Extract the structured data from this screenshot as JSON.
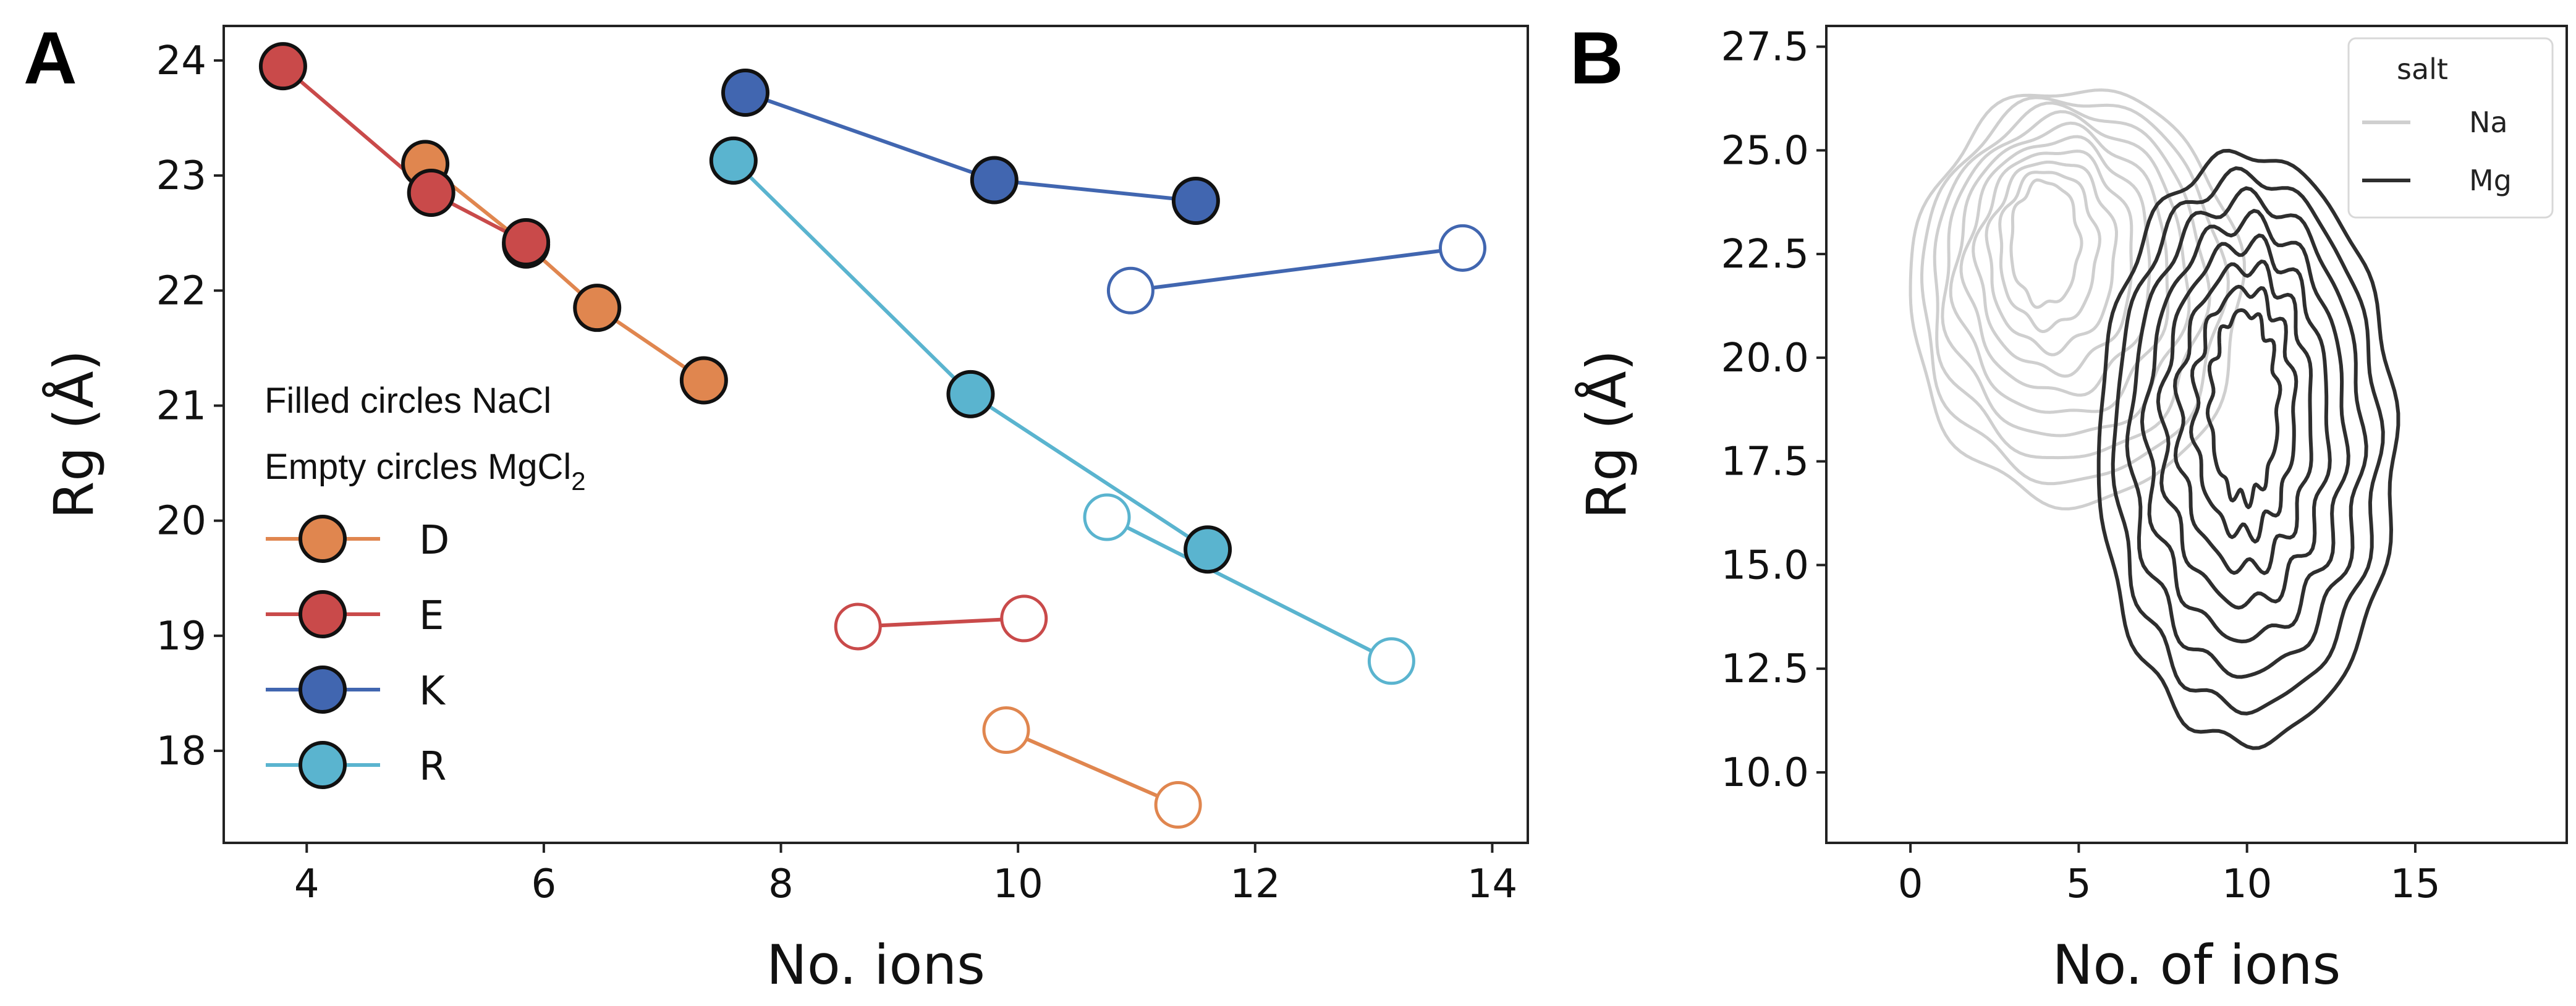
{
  "chart_data": [
    {
      "panel": "A",
      "type": "line",
      "xlabel": "No. ions",
      "ylabel": "Rg (Å)",
      "xlim": [
        3.3,
        14.3
      ],
      "ylim": [
        17.2,
        24.3
      ],
      "xticks": [
        "4",
        "6",
        "8",
        "10",
        "12",
        "14"
      ],
      "xtick_values": [
        4,
        6,
        8,
        10,
        12,
        14
      ],
      "yticks": [
        "18",
        "19",
        "20",
        "21",
        "22",
        "23",
        "24"
      ],
      "ytick_values": [
        18,
        19,
        20,
        21,
        22,
        23,
        24
      ],
      "annotation_line1": "Filled circles NaCl",
      "annotation_line2_prefix": "Empty circles MgCl",
      "annotation_line2_sub": "2",
      "series": [
        {
          "name": "D",
          "color": "#e0864f",
          "edge": "#e0864f",
          "filled": true,
          "points": [
            [
              5.0,
              23.1
            ],
            [
              5.85,
              22.4
            ],
            [
              6.45,
              21.85
            ],
            [
              7.35,
              21.22
            ]
          ]
        },
        {
          "name": "D",
          "color": "#e0864f",
          "edge": "#e0864f",
          "filled": false,
          "points": [
            [
              9.9,
              18.18
            ],
            [
              11.35,
              17.53
            ]
          ]
        },
        {
          "name": "E",
          "color": "#c94a4a",
          "edge": "#c94a4a",
          "filled": true,
          "points": [
            [
              3.8,
              23.95
            ],
            [
              5.05,
              22.85
            ],
            [
              5.85,
              22.42
            ]
          ]
        },
        {
          "name": "E",
          "color": "#c94a4a",
          "edge": "#c94a4a",
          "filled": false,
          "points": [
            [
              8.65,
              19.08
            ],
            [
              10.05,
              19.15
            ]
          ]
        },
        {
          "name": "K",
          "color": "#4166b0",
          "edge": "#4166b0",
          "filled": true,
          "points": [
            [
              7.7,
              23.72
            ],
            [
              9.8,
              22.96
            ],
            [
              11.5,
              22.78
            ]
          ]
        },
        {
          "name": "K",
          "color": "#4166b0",
          "edge": "#4166b0",
          "filled": false,
          "points": [
            [
              10.95,
              22.0
            ],
            [
              13.75,
              22.37
            ]
          ]
        },
        {
          "name": "R",
          "color": "#5ab4cf",
          "edge": "#5ab4cf",
          "filled": true,
          "points": [
            [
              7.6,
              23.13
            ],
            [
              9.6,
              21.1
            ],
            [
              11.6,
              19.75
            ]
          ]
        },
        {
          "name": "R",
          "color": "#5ab4cf",
          "edge": "#5ab4cf",
          "filled": false,
          "points": [
            [
              10.75,
              20.03
            ],
            [
              13.15,
              18.78
            ]
          ]
        }
      ],
      "legend": [
        {
          "label": "D",
          "color": "#e0864f"
        },
        {
          "label": "E",
          "color": "#c94a4a"
        },
        {
          "label": "K",
          "color": "#4166b0"
        },
        {
          "label": "R",
          "color": "#5ab4cf"
        }
      ]
    },
    {
      "panel": "B",
      "type": "contour",
      "xlabel": "No. of ions",
      "ylabel": "Rg (Å)",
      "xlim": [
        -2.5,
        19.5
      ],
      "ylim": [
        8.3,
        28.0
      ],
      "xticks": [
        "0",
        "5",
        "10",
        "15"
      ],
      "xtick_values": [
        0,
        5,
        10,
        15
      ],
      "yticks": [
        "10.0",
        "12.5",
        "15.0",
        "17.5",
        "20.0",
        "22.5",
        "25.0",
        "27.5"
      ],
      "ytick_values": [
        10.0,
        12.5,
        15.0,
        17.5,
        20.0,
        22.5,
        25.0,
        27.5
      ],
      "legend_title": "salt",
      "legend": [
        {
          "label": "Na",
          "color": "#cfcfcf"
        },
        {
          "label": "Mg",
          "color": "#2e2e2e"
        }
      ],
      "series": [
        {
          "name": "Na",
          "color": "#cfcfcf",
          "center": [
            4.9,
            21.5
          ],
          "radii": [
            4.9,
            5.0
          ],
          "levels": 10
        },
        {
          "name": "Mg",
          "color": "#2e2e2e",
          "center": [
            10.0,
            17.8
          ],
          "radii": [
            4.4,
            7.1
          ],
          "levels": 8
        }
      ]
    }
  ]
}
